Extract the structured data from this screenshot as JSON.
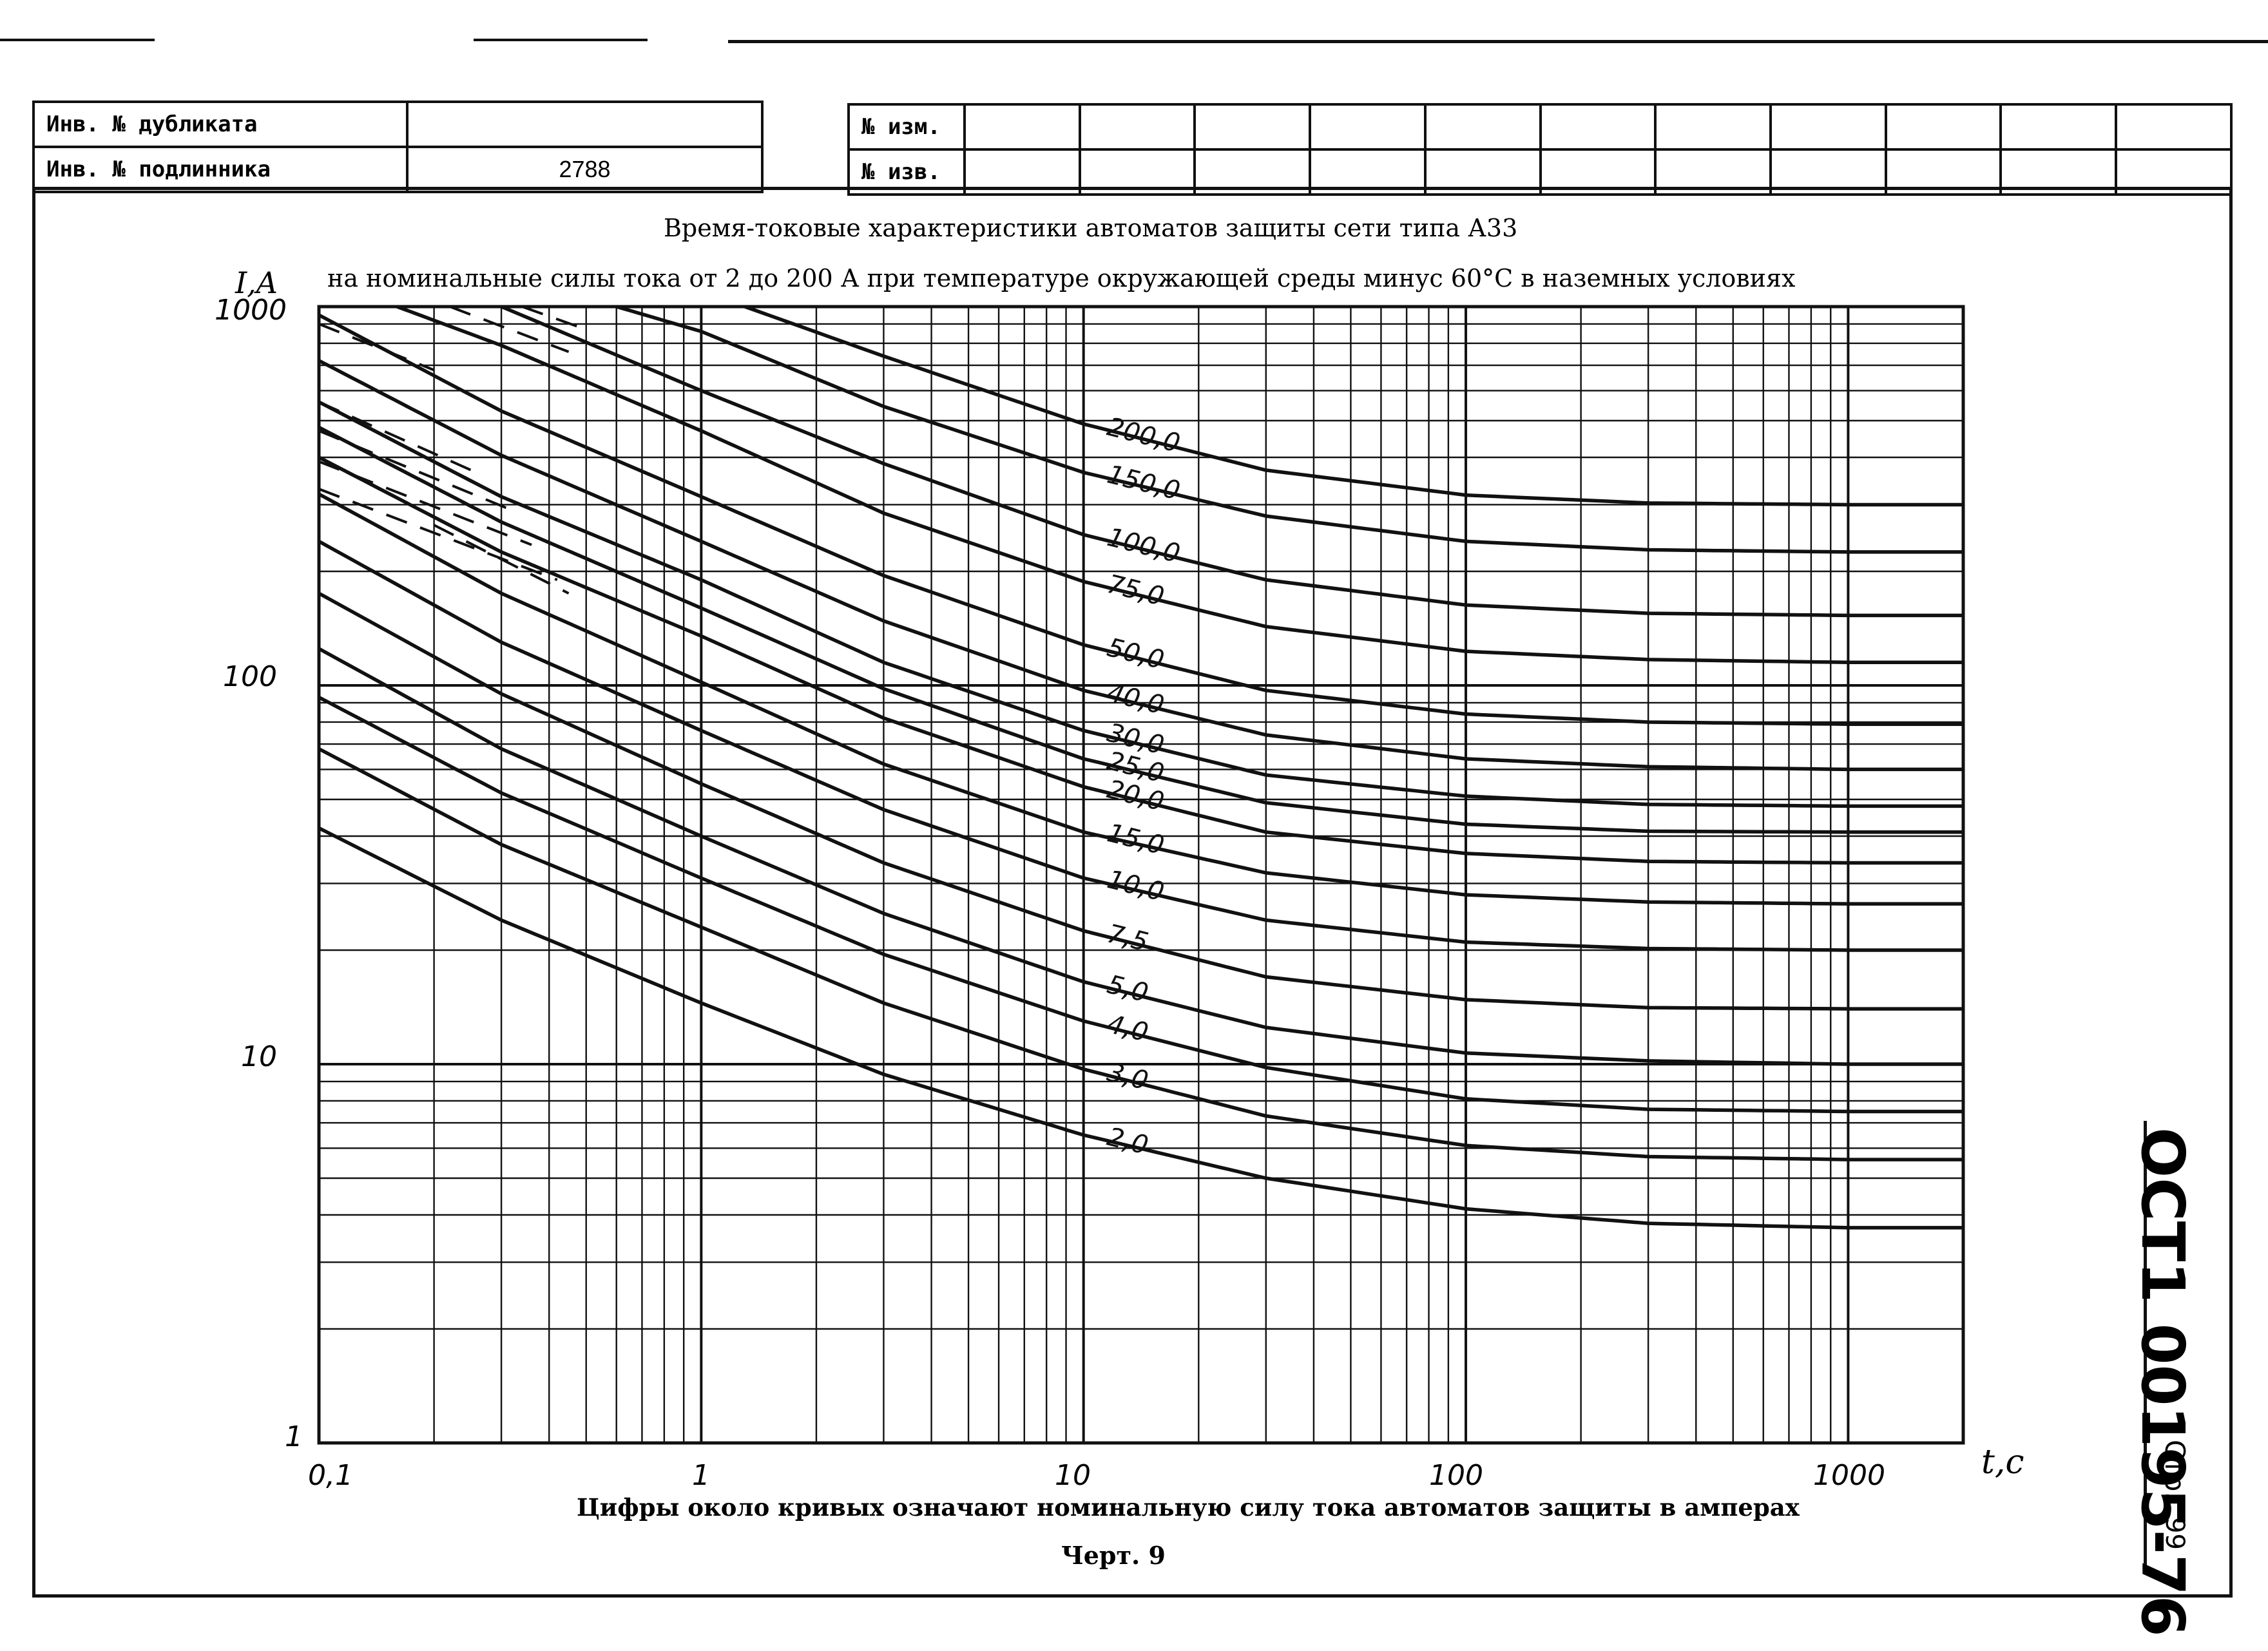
{
  "stamp_left": {
    "row1_label": "Инв. № дубликата",
    "row1_value": "",
    "row2_label": "Инв. № подлинника",
    "row2_value": "2788"
  },
  "stamp_right": {
    "row1_label": "№ изм.",
    "row2_label": "№ изв."
  },
  "document": {
    "code": "ОСТ1 00195-76",
    "page_prefix": "Стр.",
    "page_number": "99",
    "caption_note": "Цифры около кривых означают номинальную силу тока автоматов защиты в амперах",
    "figure_label": "Черт. 9"
  },
  "chart_data": {
    "type": "line",
    "title": "Время-токовые характеристики автоматов защиты сети типа А33",
    "subtitle": "на номинальные силы тока от 2 до 200 А при температуре окружающей среды минус 60°С в наземных условиях",
    "xlabel": "t,c",
    "ylabel": "I,A",
    "x_scale": "log",
    "y_scale": "log",
    "xlim": [
      0.1,
      2000
    ],
    "ylim": [
      1,
      1000
    ],
    "x_ticks": [
      "0,1",
      "1",
      "10",
      "100",
      "1000"
    ],
    "y_ticks": [
      "1",
      "10",
      "100",
      "1000"
    ],
    "grid": true,
    "series": [
      {
        "name": "2,0",
        "x": [
          0.1,
          0.3,
          1,
          3,
          10,
          30,
          100,
          300,
          1000,
          2000
        ],
        "y": [
          42,
          24,
          14.5,
          9.4,
          6.5,
          5.0,
          4.15,
          3.8,
          3.7,
          3.7
        ]
      },
      {
        "name": "3,0",
        "x": [
          0.1,
          0.3,
          1,
          3,
          10,
          30,
          100,
          300,
          1000,
          2000
        ],
        "y": [
          68,
          38,
          23,
          14.5,
          9.7,
          7.3,
          6.1,
          5.7,
          5.6,
          5.6
        ]
      },
      {
        "name": "4,0",
        "x": [
          0.1,
          0.3,
          1,
          3,
          10,
          30,
          100,
          300,
          1000,
          2000
        ],
        "y": [
          93,
          52,
          31,
          19.5,
          13,
          9.8,
          8.1,
          7.6,
          7.5,
          7.5
        ]
      },
      {
        "name": "5,0",
        "x": [
          0.1,
          0.3,
          1,
          3,
          10,
          30,
          100,
          300,
          1000,
          2000
        ],
        "y": [
          125,
          68,
          40,
          25,
          16.5,
          12.5,
          10.7,
          10.2,
          10,
          10
        ]
      },
      {
        "name": "7,5",
        "x": [
          0.1,
          0.3,
          1,
          3,
          10,
          30,
          100,
          300,
          1000,
          2000
        ],
        "y": [
          175,
          95,
          55,
          34,
          22.5,
          17,
          14.8,
          14.1,
          14,
          14
        ]
      },
      {
        "name": "10,0",
        "x": [
          0.1,
          0.3,
          1,
          3,
          10,
          30,
          100,
          300,
          1000,
          2000
        ],
        "y": [
          240,
          130,
          76,
          47,
          31,
          24,
          21,
          20.2,
          20,
          20
        ]
      },
      {
        "name": "15,0",
        "x": [
          0.1,
          0.3,
          1,
          3,
          10,
          30,
          100,
          300,
          1000,
          2000
        ],
        "y": [
          320,
          175,
          102,
          62,
          41,
          32,
          28,
          26.8,
          26.5,
          26.5
        ]
      },
      {
        "name": "20,0",
        "x": [
          0.1,
          0.3,
          1,
          3,
          10,
          30,
          100,
          300,
          1000,
          2000
        ],
        "y": [
          400,
          225,
          135,
          82,
          54,
          41,
          36,
          34.3,
          34,
          34
        ]
      },
      {
        "name": "25,0",
        "x": [
          0.1,
          0.3,
          1,
          3,
          10,
          30,
          100,
          300,
          1000,
          2000
        ],
        "y": [
          480,
          270,
          160,
          98,
          64,
          49,
          43,
          41.2,
          41,
          41
        ]
      },
      {
        "name": "30,0",
        "x": [
          0.1,
          0.3,
          1,
          3,
          10,
          30,
          100,
          300,
          1000,
          2000
        ],
        "y": [
          560,
          315,
          190,
          115,
          76,
          58,
          51,
          48.5,
          48,
          48
        ]
      },
      {
        "name": "40,0",
        "x": [
          0.1,
          0.3,
          1,
          3,
          10,
          30,
          100,
          300,
          1000,
          2000
        ],
        "y": [
          720,
          405,
          240,
          148,
          97,
          74,
          64,
          61,
          60,
          60
        ]
      },
      {
        "name": "50,0",
        "x": [
          0.1,
          0.3,
          1,
          3,
          10,
          30,
          100,
          300,
          1000,
          2000
        ],
        "y": [
          950,
          530,
          315,
          195,
          128,
          97,
          84,
          80,
          79,
          79
        ]
      },
      {
        "name": "75,0",
        "x": [
          0.16,
          0.3,
          1,
          3,
          10,
          30,
          100,
          300,
          1000,
          2000
        ],
        "y": [
          1000,
          790,
          470,
          285,
          188,
          143,
          123,
          117,
          115,
          115
        ]
      },
      {
        "name": "100,0",
        "x": [
          0.3,
          1,
          3,
          10,
          30,
          100,
          300,
          1000,
          2000
        ],
        "y": [
          1000,
          600,
          385,
          250,
          190,
          163,
          155,
          153,
          153
        ]
      },
      {
        "name": "150,0",
        "x": [
          0.6,
          1,
          3,
          10,
          30,
          100,
          300,
          1000,
          2000
        ],
        "y": [
          1000,
          860,
          545,
          365,
          280,
          240,
          228,
          225,
          225
        ]
      },
      {
        "name": "200,0",
        "x": [
          1.3,
          3,
          10,
          30,
          100,
          300,
          1000,
          2000
        ],
        "y": [
          1000,
          740,
          490,
          370,
          318,
          303,
          300,
          300
        ]
      }
    ],
    "dashed_series": [
      {
        "x": [
          0.1,
          0.2
        ],
        "y": [
          900,
          680
        ]
      },
      {
        "x": [
          0.22,
          0.45
        ],
        "y": [
          1000,
          760
        ]
      },
      {
        "x": [
          0.34,
          0.5
        ],
        "y": [
          1000,
          870
        ]
      },
      {
        "x": [
          0.1,
          0.25
        ],
        "y": [
          560,
          370
        ]
      },
      {
        "x": [
          0.1,
          0.32
        ],
        "y": [
          470,
          290
        ]
      },
      {
        "x": [
          0.1,
          0.36
        ],
        "y": [
          390,
          235
        ]
      },
      {
        "x": [
          0.1,
          0.42
        ],
        "y": [
          330,
          190
        ]
      },
      {
        "x": [
          0.2,
          0.45
        ],
        "y": [
          265,
          175
        ]
      }
    ]
  }
}
